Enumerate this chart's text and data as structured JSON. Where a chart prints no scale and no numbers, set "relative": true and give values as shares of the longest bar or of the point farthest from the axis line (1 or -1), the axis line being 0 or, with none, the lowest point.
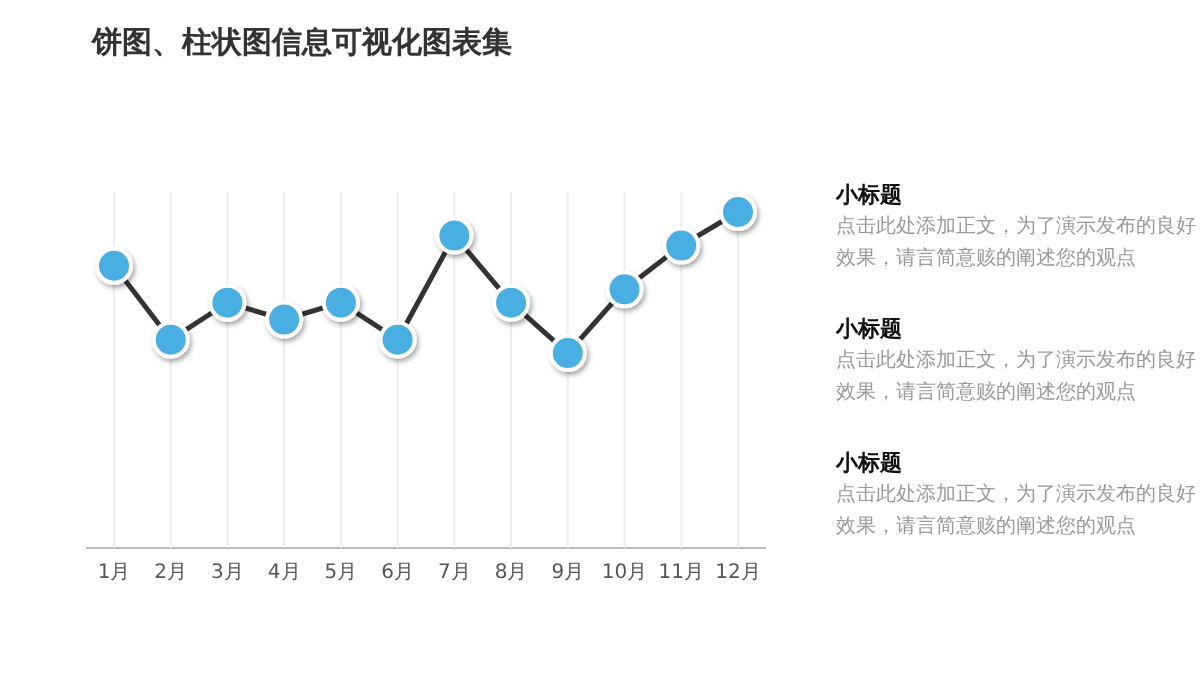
{
  "chart_data": [
    {
      "type": "line",
      "title": "饼图、柱状图信息可视化图表集",
      "relative": true,
      "categories": [
        "1月",
        "2月",
        "3月",
        "4月",
        "5月",
        "6月",
        "7月",
        "8月",
        "9月",
        "10月",
        "11月",
        "12月"
      ],
      "series": [
        {
          "color": "#4aaee2",
          "values": [
            0.84,
            0.62,
            0.73,
            0.68,
            0.73,
            0.62,
            0.93,
            0.73,
            0.58,
            0.77,
            0.9,
            1
          ]
        }
      ],
      "marker": "circle",
      "line_style": "solid",
      "grid": "x"
    },
    {
      "type": "other",
      "annotations": [
        "小标题",
        "点击此处添加正文，为了演示发布的良好效果，请言简意赅的阐述您的观点",
        "小标题",
        "点击此处添加正文，为了演示发布的良好效果，请言简意赅的阐述您的观点",
        "小标题",
        "点击此处添加正文，为了演示发布的良好效果，请言简意赅的阐述您的观点"
      ]
    }
  ]
}
